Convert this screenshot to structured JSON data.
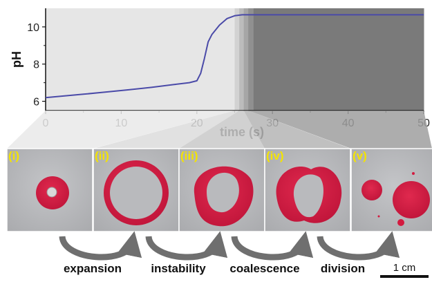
{
  "chart_data": {
    "type": "line",
    "title": "",
    "xlabel": "time (s)",
    "ylabel": "pH",
    "xlim": [
      0,
      50
    ],
    "ylim": [
      5.5,
      11
    ],
    "x_ticks": [
      "0",
      "10",
      "20",
      "30",
      "40",
      "50"
    ],
    "y_ticks": [
      "6",
      "8",
      "10"
    ],
    "grid": false,
    "series": [
      {
        "color": "#4a4aa8",
        "x": [
          0,
          2,
          5,
          8,
          11,
          14,
          17,
          19,
          20,
          20.5,
          21,
          21.5,
          22,
          23,
          24,
          25,
          26,
          30,
          40,
          50
        ],
        "y": [
          6.2,
          6.27,
          6.38,
          6.5,
          6.62,
          6.75,
          6.9,
          7.0,
          7.1,
          7.5,
          8.3,
          9.2,
          9.6,
          10.1,
          10.45,
          10.6,
          10.65,
          10.65,
          10.65,
          10.65
        ]
      }
    ],
    "shaded_regions": [
      {
        "x0": 0,
        "x1": 25,
        "color": "#e6e6e6"
      },
      {
        "x0": 25,
        "x1": 25.6,
        "color": "#d2d2d2"
      },
      {
        "x0": 25.6,
        "x1": 26.2,
        "color": "#bcbcbc"
      },
      {
        "x0": 26.2,
        "x1": 26.8,
        "color": "#a6a6a6"
      },
      {
        "x0": 26.8,
        "x1": 27.5,
        "color": "#909090"
      },
      {
        "x0": 27.5,
        "x1": 50,
        "color": "#7a7a7a"
      }
    ]
  },
  "panels": [
    {
      "label": "(i)"
    },
    {
      "label": "(ii)"
    },
    {
      "label": "(iii)"
    },
    {
      "label": "(iv)"
    },
    {
      "label": "(v)"
    }
  ],
  "processes": [
    {
      "label": "expansion"
    },
    {
      "label": "instability"
    },
    {
      "label": "coalescence"
    },
    {
      "label": "division"
    }
  ],
  "scale_bar": {
    "label": "1 cm"
  },
  "colors": {
    "drop_red": "#d31a3f",
    "dish_grey": "#b8b9bb",
    "arrow_grey": "#6f6f6f"
  }
}
